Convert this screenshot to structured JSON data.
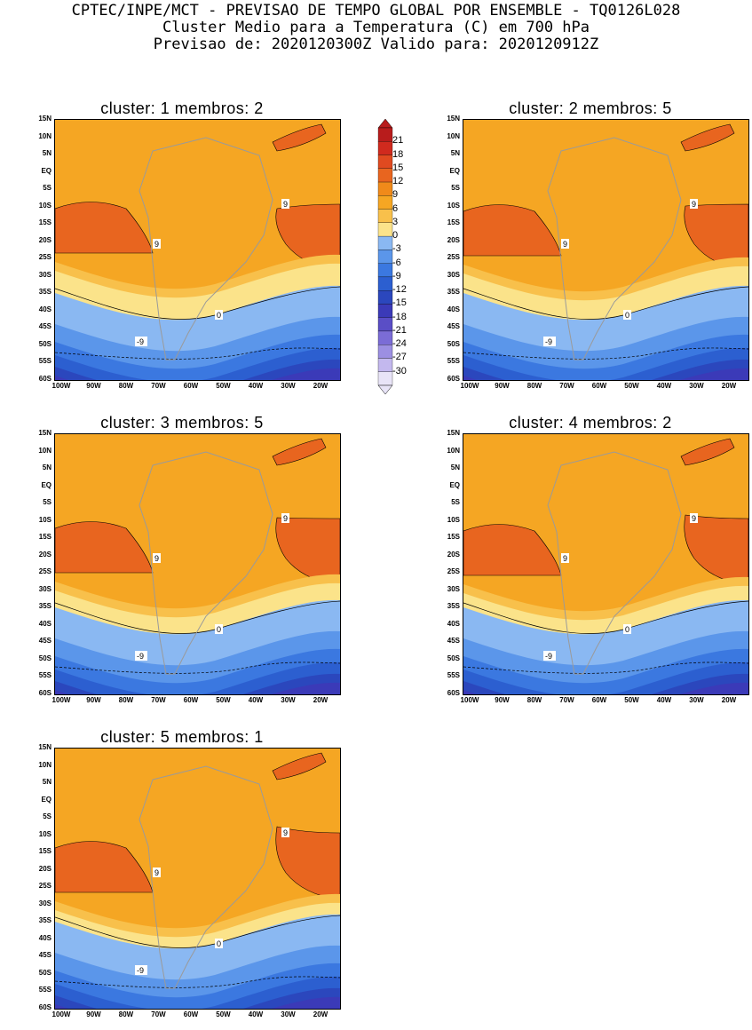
{
  "header": {
    "line1": "CPTEC/INPE/MCT - PREVISAO DE TEMPO GLOBAL POR ENSEMBLE - TQ0126L028",
    "line2": "Cluster Medio para a Temperatura (C) em 700 hPa",
    "line3": "Previsao de: 2020120300Z   Valido para: 2020120912Z"
  },
  "panels": [
    {
      "title": "cluster: 1  membros: 2"
    },
    {
      "title": "cluster: 2  membros: 5"
    },
    {
      "title": "cluster: 3  membros: 5"
    },
    {
      "title": "cluster: 4  membros: 2"
    },
    {
      "title": "cluster: 5  membros: 1"
    }
  ],
  "axes": {
    "lat": [
      "15N",
      "10N",
      "5N",
      "EQ",
      "5S",
      "10S",
      "15S",
      "20S",
      "25S",
      "30S",
      "35S",
      "40S",
      "45S",
      "50S",
      "55S",
      "60S"
    ],
    "lon": [
      "100W",
      "90W",
      "80W",
      "70W",
      "60W",
      "50W",
      "40W",
      "30W",
      "20W"
    ]
  },
  "colorbar": {
    "labels": [
      "21",
      "18",
      "15",
      "12",
      "9",
      "6",
      "3",
      "0",
      "-3",
      "-6",
      "-9",
      "-12",
      "-15",
      "-18",
      "-21",
      "-24",
      "-27",
      "-30"
    ],
    "colors": [
      "#b81c1c",
      "#d02a1e",
      "#e04a20",
      "#e8651f",
      "#f08a1a",
      "#f5a623",
      "#f8c04b",
      "#fbe38a",
      "#8ab8f2",
      "#5b96ea",
      "#3b78e0",
      "#2c5fd0",
      "#2b47bd",
      "#3b3ab8",
      "#5a4ec6",
      "#7b6cd6",
      "#9c8fe2",
      "#c3b8ee",
      "#e8e4f7"
    ]
  },
  "contour_labels": [
    "9",
    "0",
    "-9"
  ]
}
